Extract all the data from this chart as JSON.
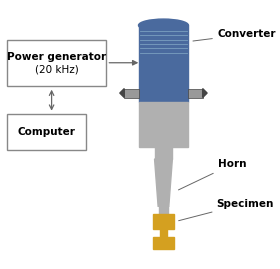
{
  "bg_color": "#ffffff",
  "box_power_label1": "Power generator",
  "box_power_label2": "(20 kHz)",
  "box_comp_label": "Computer",
  "box_color": "#ffffff",
  "box_edge_color": "#888888",
  "converter_color": "#4a6a9e",
  "gray_color": "#b0b0b0",
  "specimen_color": "#d4a020",
  "label_converter": "Converter",
  "label_horn": "Horn",
  "label_specimen": "Specimen",
  "line_color": "#666666",
  "label_fontsize": 7.5
}
